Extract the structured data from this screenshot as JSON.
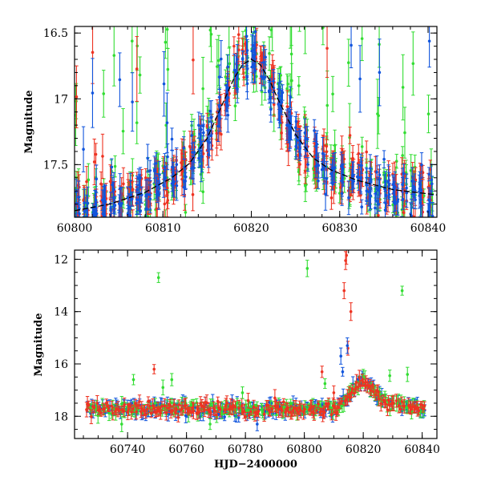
{
  "colors": {
    "green": "#33dd33",
    "red": "#ee3322",
    "blue": "#1155dd",
    "model": "#000000"
  },
  "chart_data": [
    {
      "type": "scatter",
      "panel": "top",
      "title": "",
      "xlabel": "",
      "ylabel": "Magnitude",
      "xlim": [
        60800,
        60841
      ],
      "ylim": [
        17.9,
        16.45
      ],
      "y_inverted": true,
      "xticks": [
        "60800",
        "60810",
        "60820",
        "60830",
        "60840"
      ],
      "yticks": [
        "16.5",
        "17",
        "17.5"
      ],
      "model_curve": {
        "x": [
          60800,
          60804,
          60808,
          60811,
          60813,
          60815,
          60817,
          60818,
          60819,
          60820,
          60821,
          60822,
          60823,
          60825,
          60827,
          60829,
          60832,
          60836,
          60841
        ],
        "y": [
          17.85,
          17.8,
          17.71,
          17.6,
          17.49,
          17.3,
          17.0,
          16.85,
          16.74,
          16.7,
          16.74,
          16.85,
          17.0,
          17.27,
          17.45,
          17.54,
          17.62,
          17.69,
          17.73
        ]
      },
      "series": [
        {
          "color_key": "green",
          "band_scatter": 0.22,
          "outlier_fraction": 0.12
        },
        {
          "color_key": "red",
          "band_scatter": 0.18,
          "outlier_fraction": 0.03
        },
        {
          "color_key": "blue",
          "band_scatter": 0.16,
          "outlier_fraction": 0.03
        }
      ],
      "grid": false
    },
    {
      "type": "scatter",
      "panel": "bottom",
      "title": "",
      "xlabel": "HJD−2400000",
      "ylabel": "Magnitude",
      "xlim": [
        60722,
        60845
      ],
      "ylim": [
        18.85,
        11.65
      ],
      "y_inverted": true,
      "xticks": [
        "60740",
        "60760",
        "60780",
        "60800",
        "60820",
        "60840"
      ],
      "yticks": [
        "12",
        "14",
        "16",
        "18"
      ],
      "data_range": [
        60726,
        60841
      ],
      "baseline_mag": 17.72,
      "outliers": {
        "green": [
          [
            60750.5,
            12.7
          ],
          [
            60801.0,
            12.35
          ],
          [
            60833.2,
            13.2
          ],
          [
            60742.0,
            16.6
          ],
          [
            60752.0,
            16.9
          ],
          [
            60755.0,
            16.6
          ],
          [
            60779.0,
            17.1
          ],
          [
            60807.0,
            16.75
          ],
          [
            60829.0,
            16.45
          ],
          [
            60835.0,
            16.4
          ],
          [
            60738.0,
            18.3
          ],
          [
            60768.0,
            18.3
          ]
        ],
        "red": [
          [
            60814.3,
            11.85
          ],
          [
            60814.0,
            12.05
          ],
          [
            60813.5,
            13.2
          ],
          [
            60815.8,
            14.0
          ],
          [
            60814.8,
            15.4
          ],
          [
            60749.0,
            16.2
          ],
          [
            60806.0,
            16.3
          ],
          [
            60810.0,
            17.1
          ],
          [
            60790.0,
            17.3
          ]
        ],
        "blue": [
          [
            60812.4,
            15.7
          ],
          [
            60813.0,
            16.3
          ],
          [
            60814.6,
            15.3
          ],
          [
            60784.0,
            18.3
          ]
        ]
      },
      "grid": false
    }
  ]
}
